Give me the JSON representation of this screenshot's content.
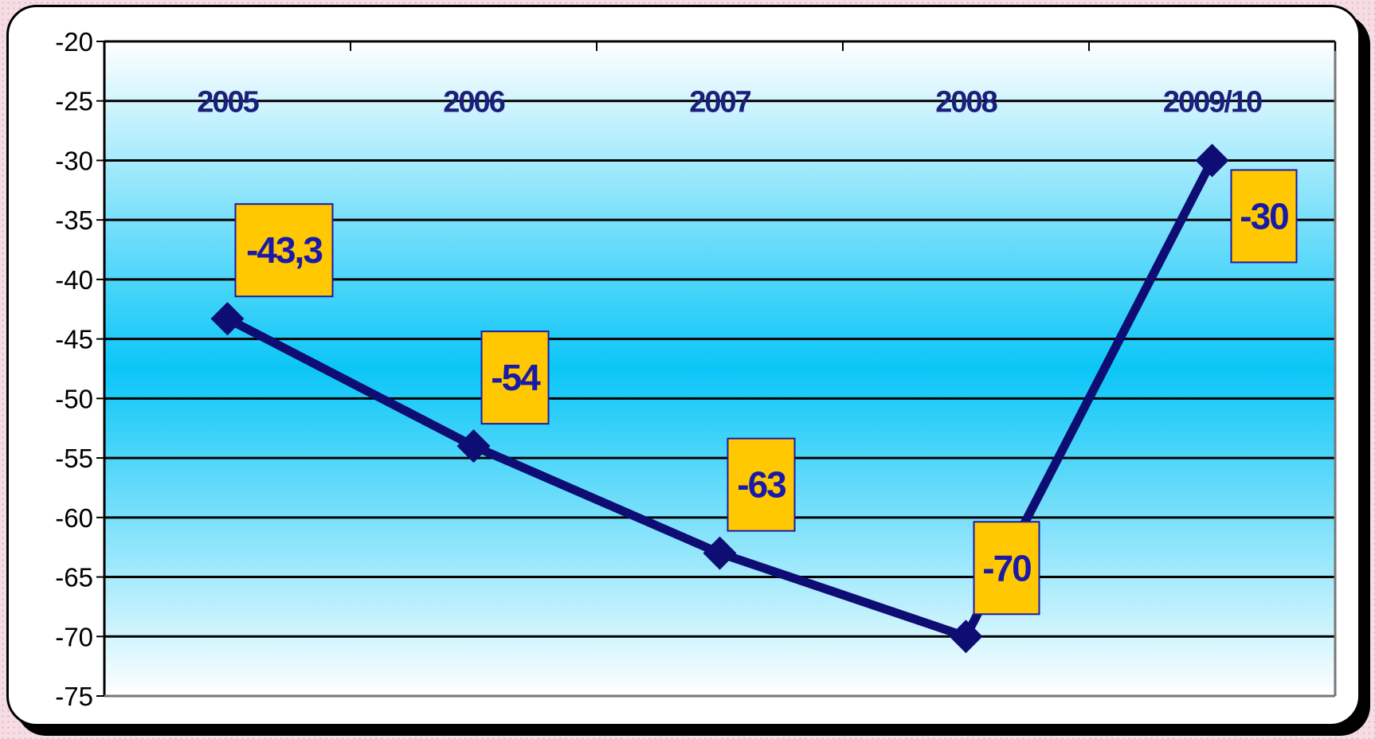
{
  "chart_data": {
    "type": "line",
    "categories": [
      "2005",
      "2006",
      "2007",
      "2008",
      "2009/10"
    ],
    "series": [
      {
        "values": [
          -43.3,
          -54,
          -63,
          -70,
          -30
        ],
        "data_labels": [
          "-43,3",
          "-54",
          "-63",
          "-70",
          "-30"
        ],
        "color": "#0d0d73"
      }
    ],
    "ylim": [
      -75,
      -20
    ],
    "yticks": [
      -20,
      -25,
      -30,
      -35,
      -40,
      -45,
      -50,
      -55,
      -60,
      -65,
      -70,
      -75
    ],
    "ytick_labels": [
      "-20",
      "-25",
      "-30",
      "-35",
      "-40",
      "-45",
      "-50",
      "-55",
      "-60",
      "-65",
      "-70",
      "-75"
    ],
    "category_labels_position": "top",
    "grid": true,
    "data_label_fill": "#ffc800",
    "data_label_border": "#1a1aa8",
    "plot_gradient": [
      "#ffffff",
      "#0bc6f7",
      "#ffffff"
    ],
    "title": "",
    "xlabel": "",
    "ylabel": ""
  }
}
